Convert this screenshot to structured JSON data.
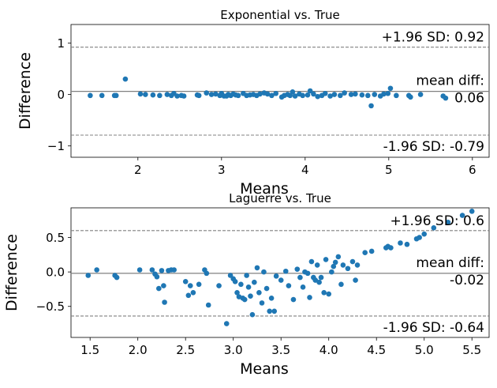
{
  "chart_data": [
    {
      "type": "scatter",
      "title": "Exponential vs. True",
      "xlabel": "Means",
      "ylabel": "Difference",
      "xlim": [
        1.2,
        6.2
      ],
      "ylim": [
        -1.22,
        1.36
      ],
      "xticks": [
        "2",
        "3",
        "4",
        "5",
        "6"
      ],
      "yticks": [
        "−1",
        "0",
        "1"
      ],
      "xtick_values": [
        2,
        3,
        4,
        5,
        6
      ],
      "ytick_values": [
        -1,
        0,
        1
      ],
      "grid": false,
      "point_color": "#1f77b4",
      "mean_diff": 0.06,
      "upper_loa": 0.92,
      "lower_loa": -0.79,
      "annotations": {
        "upper": "+1.96 SD: 0.92",
        "mean_line1": "mean diff:",
        "mean_line2": "0.06",
        "lower": "-1.96 SD: -0.79"
      },
      "points": [
        [
          1.43,
          -0.02
        ],
        [
          1.57,
          -0.02
        ],
        [
          1.72,
          -0.02
        ],
        [
          1.74,
          -0.02
        ],
        [
          1.85,
          0.3
        ],
        [
          2.03,
          0.01
        ],
        [
          2.09,
          0.0
        ],
        [
          2.18,
          -0.01
        ],
        [
          2.26,
          -0.02
        ],
        [
          2.35,
          0.0
        ],
        [
          2.4,
          -0.02
        ],
        [
          2.43,
          0.02
        ],
        [
          2.47,
          -0.03
        ],
        [
          2.52,
          -0.02
        ],
        [
          2.55,
          -0.03
        ],
        [
          2.71,
          -0.01
        ],
        [
          2.73,
          -0.02
        ],
        [
          2.82,
          0.03
        ],
        [
          2.88,
          0.0
        ],
        [
          2.93,
          0.01
        ],
        [
          2.98,
          -0.02
        ],
        [
          3.0,
          0.02
        ],
        [
          3.03,
          -0.03
        ],
        [
          3.06,
          -0.03
        ],
        [
          3.08,
          0.0
        ],
        [
          3.11,
          -0.02
        ],
        [
          3.14,
          0.01
        ],
        [
          3.17,
          -0.01
        ],
        [
          3.2,
          -0.02
        ],
        [
          3.26,
          0.02
        ],
        [
          3.3,
          -0.02
        ],
        [
          3.34,
          -0.01
        ],
        [
          3.38,
          0.0
        ],
        [
          3.42,
          -0.02
        ],
        [
          3.46,
          0.01
        ],
        [
          3.51,
          0.03
        ],
        [
          3.55,
          0.01
        ],
        [
          3.6,
          -0.02
        ],
        [
          3.65,
          0.02
        ],
        [
          3.72,
          -0.05
        ],
        [
          3.75,
          -0.02
        ],
        [
          3.79,
          0.0
        ],
        [
          3.82,
          -0.02
        ],
        [
          3.85,
          0.05
        ],
        [
          3.88,
          -0.03
        ],
        [
          3.93,
          0.01
        ],
        [
          3.97,
          -0.02
        ],
        [
          4.03,
          -0.01
        ],
        [
          4.06,
          0.07
        ],
        [
          4.1,
          0.01
        ],
        [
          4.15,
          -0.04
        ],
        [
          4.2,
          -0.02
        ],
        [
          4.24,
          0.02
        ],
        [
          4.3,
          -0.03
        ],
        [
          4.35,
          0.0
        ],
        [
          4.42,
          -0.02
        ],
        [
          4.47,
          0.03
        ],
        [
          4.55,
          0.0
        ],
        [
          4.6,
          0.01
        ],
        [
          4.68,
          -0.01
        ],
        [
          4.75,
          -0.02
        ],
        [
          4.79,
          -0.22
        ],
        [
          4.83,
          0.0
        ],
        [
          4.9,
          -0.03
        ],
        [
          4.94,
          0.01
        ],
        [
          4.99,
          0.02
        ],
        [
          5.02,
          0.12
        ],
        [
          5.09,
          -0.02
        ],
        [
          5.24,
          -0.02
        ],
        [
          5.26,
          -0.05
        ],
        [
          5.38,
          0.0
        ],
        [
          5.65,
          -0.03
        ],
        [
          5.68,
          -0.07
        ]
      ]
    },
    {
      "type": "scatter",
      "title": "Laguerre vs. True",
      "xlabel": "Means",
      "ylabel": "Difference",
      "xlim": [
        1.3,
        5.68
      ],
      "ylim": [
        -0.95,
        0.93
      ],
      "xticks": [
        "1.5",
        "2.0",
        "2.5",
        "3.0",
        "3.5",
        "4.0",
        "4.5",
        "5.0",
        "5.5"
      ],
      "yticks": [
        "−0.5",
        "0.0",
        "0.5"
      ],
      "xtick_values": [
        1.5,
        2.0,
        2.5,
        3.0,
        3.5,
        4.0,
        4.5,
        5.0,
        5.5
      ],
      "ytick_values": [
        -0.5,
        0.0,
        0.5
      ],
      "grid": false,
      "point_color": "#1f77b4",
      "mean_diff": -0.02,
      "upper_loa": 0.6,
      "lower_loa": -0.64,
      "annotations": {
        "upper": "+1.96 SD: 0.6",
        "mean_line1": "mean diff:",
        "mean_line2": "-0.02",
        "lower": "-1.96 SD: -0.64"
      },
      "points": [
        [
          1.48,
          -0.05
        ],
        [
          1.57,
          0.03
        ],
        [
          1.76,
          -0.05
        ],
        [
          1.78,
          -0.08
        ],
        [
          2.02,
          0.03
        ],
        [
          2.15,
          0.03
        ],
        [
          2.18,
          -0.03
        ],
        [
          2.2,
          -0.07
        ],
        [
          2.22,
          -0.24
        ],
        [
          2.25,
          0.02
        ],
        [
          2.27,
          -0.2
        ],
        [
          2.28,
          -0.44
        ],
        [
          2.32,
          0.02
        ],
        [
          2.35,
          0.03
        ],
        [
          2.38,
          0.03
        ],
        [
          2.5,
          -0.14
        ],
        [
          2.53,
          -0.34
        ],
        [
          2.55,
          -0.2
        ],
        [
          2.58,
          -0.3
        ],
        [
          2.64,
          -0.18
        ],
        [
          2.7,
          0.03
        ],
        [
          2.72,
          -0.02
        ],
        [
          2.74,
          -0.48
        ],
        [
          2.85,
          -0.2
        ],
        [
          2.93,
          -0.75
        ],
        [
          2.97,
          -0.05
        ],
        [
          3.0,
          -0.1
        ],
        [
          3.02,
          -0.14
        ],
        [
          3.04,
          -0.3
        ],
        [
          3.06,
          -0.36
        ],
        [
          3.08,
          -0.18
        ],
        [
          3.1,
          -0.38
        ],
        [
          3.12,
          -0.4
        ],
        [
          3.14,
          -0.05
        ],
        [
          3.16,
          -0.22
        ],
        [
          3.18,
          -0.35
        ],
        [
          3.2,
          -0.62
        ],
        [
          3.22,
          -0.15
        ],
        [
          3.25,
          0.06
        ],
        [
          3.27,
          -0.3
        ],
        [
          3.3,
          -0.45
        ],
        [
          3.32,
          0.0
        ],
        [
          3.35,
          -0.24
        ],
        [
          3.38,
          -0.57
        ],
        [
          3.4,
          -0.38
        ],
        [
          3.43,
          -0.57
        ],
        [
          3.45,
          -0.06
        ],
        [
          3.5,
          -0.12
        ],
        [
          3.55,
          0.01
        ],
        [
          3.58,
          -0.2
        ],
        [
          3.63,
          -0.4
        ],
        [
          3.67,
          0.04
        ],
        [
          3.7,
          -0.08
        ],
        [
          3.73,
          -0.22
        ],
        [
          3.75,
          0.0
        ],
        [
          3.78,
          -0.02
        ],
        [
          3.8,
          -0.37
        ],
        [
          3.82,
          0.15
        ],
        [
          3.84,
          -0.08
        ],
        [
          3.86,
          -0.12
        ],
        [
          3.88,
          0.1
        ],
        [
          3.9,
          -0.15
        ],
        [
          3.92,
          -0.08
        ],
        [
          3.95,
          -0.3
        ],
        [
          3.97,
          0.18
        ],
        [
          4.0,
          -0.32
        ],
        [
          4.03,
          0.0
        ],
        [
          4.05,
          0.08
        ],
        [
          4.07,
          0.14
        ],
        [
          4.1,
          0.22
        ],
        [
          4.13,
          -0.18
        ],
        [
          4.15,
          0.1
        ],
        [
          4.2,
          0.05
        ],
        [
          4.25,
          0.15
        ],
        [
          4.28,
          -0.12
        ],
        [
          4.3,
          0.1
        ],
        [
          4.38,
          0.28
        ],
        [
          4.45,
          0.3
        ],
        [
          4.6,
          0.35
        ],
        [
          4.62,
          0.37
        ],
        [
          4.65,
          0.35
        ],
        [
          4.75,
          0.42
        ],
        [
          4.82,
          0.4
        ],
        [
          4.92,
          0.48
        ],
        [
          4.95,
          0.5
        ],
        [
          5.0,
          0.55
        ],
        [
          5.1,
          0.64
        ],
        [
          5.25,
          0.72
        ],
        [
          5.4,
          0.82
        ],
        [
          5.5,
          0.88
        ]
      ]
    }
  ]
}
